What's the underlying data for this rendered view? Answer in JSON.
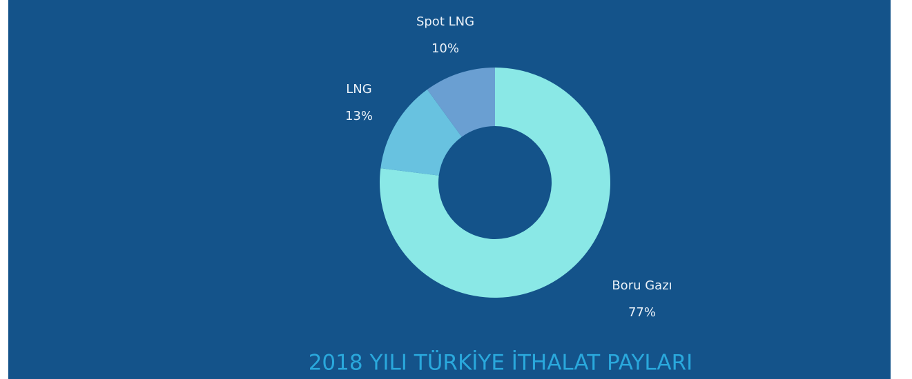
{
  "chart_data": {
    "type": "donut",
    "title": "2018 YILI TÜRKİYE İTHALAT PAYLARI",
    "categories": [
      "Boru Gazı",
      "LNG",
      "Spot LNG"
    ],
    "values": [
      77,
      13,
      10
    ],
    "value_labels": [
      "77%",
      "13%",
      "10%"
    ],
    "colors": [
      "#8ae8e6",
      "#68c2e0",
      "#6a9fd2"
    ]
  }
}
